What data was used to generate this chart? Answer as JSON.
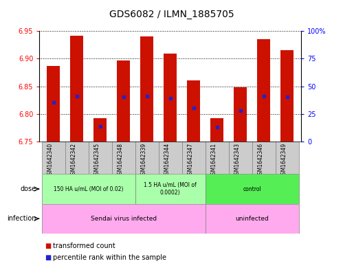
{
  "title": "GDS6082 / ILMN_1885705",
  "samples": [
    "GSM1642340",
    "GSM1642342",
    "GSM1642345",
    "GSM1642348",
    "GSM1642339",
    "GSM1642344",
    "GSM1642347",
    "GSM1642341",
    "GSM1642343",
    "GSM1642346",
    "GSM1642349"
  ],
  "bar_tops": [
    6.887,
    6.942,
    6.793,
    6.897,
    6.94,
    6.909,
    6.861,
    6.793,
    6.848,
    6.935,
    6.915
  ],
  "blue_dots": [
    6.821,
    6.832,
    6.778,
    6.831,
    6.832,
    6.829,
    6.811,
    6.776,
    6.806,
    6.832,
    6.831
  ],
  "bar_base": 6.75,
  "ylim_left": [
    6.75,
    6.95
  ],
  "yticks_left": [
    6.75,
    6.8,
    6.85,
    6.9,
    6.95
  ],
  "ylim_right": [
    0,
    100
  ],
  "yticks_right": [
    0,
    25,
    50,
    75,
    100
  ],
  "bar_color": "#cc1100",
  "blue_color": "#2222cc",
  "dose_groups": [
    {
      "label": "150 HA u/mL (MOI of 0.02)",
      "start": 0,
      "end": 4,
      "color": "#aaffaa"
    },
    {
      "label": "1.5 HA u/mL (MOI of\n0.0002)",
      "start": 4,
      "end": 7,
      "color": "#aaffaa"
    },
    {
      "label": "control",
      "start": 7,
      "end": 11,
      "color": "#55ee55"
    }
  ],
  "infection_groups": [
    {
      "label": "Sendai virus infected",
      "start": 0,
      "end": 7,
      "color": "#ffaaee"
    },
    {
      "label": "uninfected",
      "start": 7,
      "end": 11,
      "color": "#ffaaee"
    }
  ],
  "sample_box_color": "#cccccc",
  "background_color": "#ffffff",
  "bar_width": 0.55
}
